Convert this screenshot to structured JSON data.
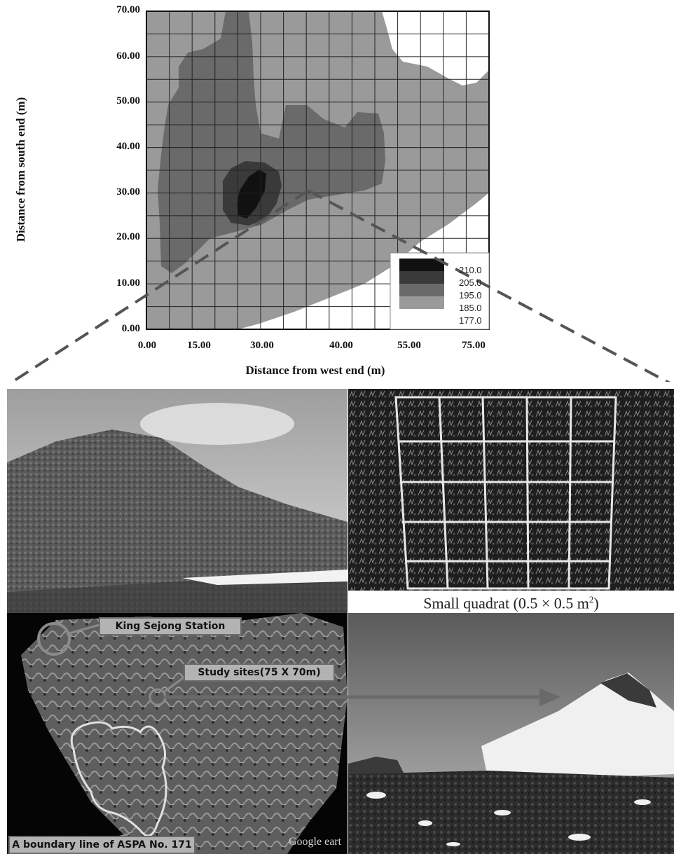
{
  "chart_data": {
    "type": "heatmap",
    "title": "",
    "xlabel": "Distance from west end (m)",
    "ylabel": "Distance from south end (m)",
    "x_ticks": [
      "0.00",
      "15.00",
      "30.00",
      "40.00",
      "55.00",
      "75.00"
    ],
    "y_ticks": [
      "0.00",
      "10.00",
      "20.00",
      "30.00",
      "40.00",
      "50.00",
      "60.00",
      "70.00"
    ],
    "xlim": [
      0,
      75
    ],
    "ylim": [
      0,
      70
    ],
    "grid": true,
    "legend_levels": [
      "210.0",
      "205.0",
      "195.0",
      "185.0",
      "177.0"
    ],
    "legend_colors": [
      "#111111",
      "#3a3a3a",
      "#6a6a6a",
      "#9a9a9a",
      "#ffffff"
    ],
    "legend_position": "bottom-right"
  },
  "photos": {
    "quadrat_caption_prefix": "Small quadrat (0.5 × 0.5 m",
    "quadrat_caption_exp": "2",
    "quadrat_caption_suffix": ")"
  },
  "map": {
    "station_label": "King Sejong Station",
    "study_label": "Study sites(75 X 70m)",
    "boundary_label": "A boundary line of ASPA No. 171",
    "watermark": "Google eart"
  },
  "colors": {
    "level_dark": "#111111",
    "level_2": "#3a3a3a",
    "level_3": "#6a6a6a",
    "level_4": "#9a9a9a",
    "background": "#ffffff",
    "dashes": "#555555"
  }
}
